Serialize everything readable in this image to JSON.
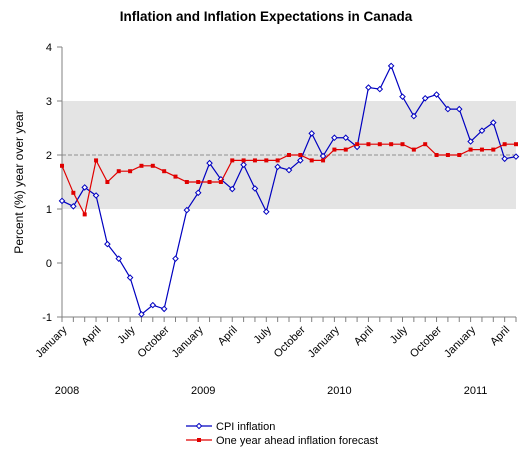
{
  "chart_data": {
    "type": "line",
    "title": "Inflation and Inflation Expectations in Canada",
    "ylabel": "Percent (%) year over year",
    "xlabel": "",
    "ylim": [
      -1,
      4
    ],
    "yticks": [
      "-1",
      "0",
      "1",
      "2",
      "3",
      "4"
    ],
    "x_start": "2008-01",
    "x_end": "2011-04",
    "x_tick_labels": [
      {
        "month": 0,
        "label": "January"
      },
      {
        "month": 3,
        "label": "April"
      },
      {
        "month": 6,
        "label": "July"
      },
      {
        "month": 9,
        "label": "October"
      },
      {
        "month": 12,
        "label": "January"
      },
      {
        "month": 15,
        "label": "April"
      },
      {
        "month": 18,
        "label": "July"
      },
      {
        "month": 21,
        "label": "October"
      },
      {
        "month": 24,
        "label": "January"
      },
      {
        "month": 27,
        "label": "April"
      },
      {
        "month": 30,
        "label": "July"
      },
      {
        "month": 33,
        "label": "October"
      },
      {
        "month": 36,
        "label": "January"
      },
      {
        "month": 39,
        "label": "April"
      }
    ],
    "year_labels": [
      {
        "month": 0,
        "label": "2008"
      },
      {
        "month": 12,
        "label": "2009"
      },
      {
        "month": 24,
        "label": "2010"
      },
      {
        "month": 36,
        "label": "2011"
      }
    ],
    "target_band": [
      1,
      3
    ],
    "target_line": 2,
    "legend_position": "bottom",
    "series": [
      {
        "name": "CPI inflation",
        "color": "#0000c0",
        "marker": "open-diamond",
        "values": [
          1.15,
          1.05,
          1.4,
          1.25,
          0.35,
          0.08,
          -0.27,
          -0.95,
          -0.78,
          -0.85,
          0.08,
          0.98,
          1.3,
          1.85,
          1.55,
          1.37,
          1.82,
          1.38,
          0.95,
          1.78,
          1.72,
          1.9,
          2.4,
          1.98,
          2.32,
          2.32,
          2.15,
          3.25,
          3.22,
          3.65,
          3.08,
          2.72,
          3.05,
          3.12,
          2.85,
          2.85,
          2.25,
          2.45,
          2.6,
          1.93,
          1.97
        ]
      },
      {
        "name": "One year ahead inflation forecast",
        "color": "#e00000",
        "marker": "filled-square",
        "values": [
          1.8,
          1.3,
          0.9,
          1.9,
          1.5,
          1.7,
          1.7,
          1.8,
          1.8,
          1.7,
          1.6,
          1.5,
          1.5,
          1.5,
          1.5,
          1.9,
          1.9,
          1.9,
          1.9,
          1.9,
          2.0,
          2.0,
          1.9,
          1.9,
          2.1,
          2.1,
          2.2,
          2.2,
          2.2,
          2.2,
          2.2,
          2.1,
          2.2,
          2.0,
          2.0,
          2.0,
          2.1,
          2.1,
          2.1,
          2.2,
          2.2
        ]
      }
    ]
  }
}
